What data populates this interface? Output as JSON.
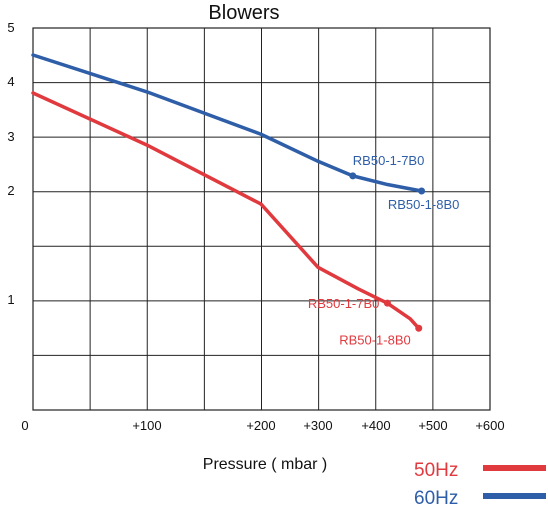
{
  "chart_data": {
    "type": "line",
    "title": "Blowers",
    "xlabel": "Pressure ( mbar )",
    "ylabel": "",
    "x_tick_labels": [
      "0",
      "+100",
      "+200",
      "+300",
      "+400",
      "+500",
      "+600"
    ],
    "y_tick_labels": [
      "1",
      "2",
      "3",
      "4",
      "5"
    ],
    "grid": true,
    "legend_position": "bottom-right",
    "series": [
      {
        "name": "50Hz",
        "color": "#e03a3e",
        "points": [
          [
            0,
            3.8
          ],
          [
            100,
            2.85
          ],
          [
            200,
            1.88
          ],
          [
            300,
            1.3
          ],
          [
            370,
            1.1
          ],
          [
            420,
            0.98
          ],
          [
            460,
            0.88
          ],
          [
            475,
            0.82
          ]
        ],
        "markers": [
          {
            "label": "RB50-1-7B0",
            "x": 420,
            "y": 0.98
          },
          {
            "label": "RB50-1-8B0",
            "x": 475,
            "y": 0.82
          }
        ]
      },
      {
        "name": "60Hz",
        "color": "#2f5ea8",
        "points": [
          [
            0,
            4.5
          ],
          [
            100,
            3.82
          ],
          [
            200,
            3.05
          ],
          [
            300,
            2.55
          ],
          [
            360,
            2.28
          ],
          [
            420,
            2.12
          ],
          [
            480,
            2.0
          ]
        ],
        "markers": [
          {
            "label": "RB50-1-7B0",
            "x": 360,
            "y": 2.28
          },
          {
            "label": "RB50-1-8B0",
            "x": 480,
            "y": 2.0
          }
        ]
      }
    ]
  }
}
